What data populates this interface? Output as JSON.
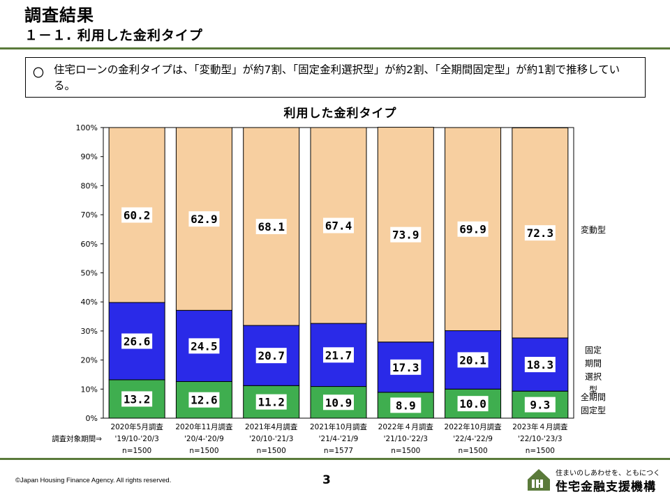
{
  "header": {
    "title": "調査結果",
    "subtitle": "１－１. 利用した金利タイプ"
  },
  "summary": {
    "bullet": "〇",
    "text": "住宅ローンの金利タイプは、「変動型」が約7割、「固定金利選択型」が約2割、「全期間固定型」が約1割で推移している。"
  },
  "period_caption": "調査対象期間⇒",
  "chart_data": {
    "type": "bar",
    "stacked": true,
    "title": "利用した金利タイプ",
    "categories": [
      "2020年5月調査",
      "2020年11月調査",
      "2021年4月調査",
      "2021年10月調査",
      "2022年４月調査",
      "2022年10月調査",
      "2023年４月調査"
    ],
    "periods": [
      "'19/10-'20/3",
      "'20/4-'20/9",
      "'20/10-'21/3",
      "'21/4-'21/9",
      "'21/10-'22/3",
      "'22/4-'22/9",
      "'22/10-'23/3"
    ],
    "sample_sizes": [
      "n=1500",
      "n=1500",
      "n=1500",
      "n=1577",
      "n=1500",
      "n=1500",
      "n=1500"
    ],
    "series": [
      {
        "name": "全期間固定型",
        "color": "#3fae4f",
        "values": [
          13.2,
          12.6,
          11.2,
          10.9,
          8.9,
          10.0,
          9.3
        ],
        "labels": [
          "13.2",
          "12.6",
          "11.2",
          "10.9",
          "8.9",
          "10.0",
          "9.3"
        ]
      },
      {
        "name": "固定期間選択型",
        "color": "#2a2ae8",
        "values": [
          26.6,
          24.5,
          20.7,
          21.7,
          17.3,
          20.1,
          18.3
        ],
        "labels": [
          "26.6",
          "24.5",
          "20.7",
          "21.7",
          "17.3",
          "20.1",
          "18.3"
        ]
      },
      {
        "name": "変動型",
        "color": "#f7cfa0",
        "values": [
          60.2,
          62.9,
          68.1,
          67.4,
          73.9,
          69.9,
          72.3
        ],
        "labels": [
          "60.2",
          "62.9",
          "68.1",
          "67.4",
          "73.9",
          "69.9",
          "72.3"
        ]
      }
    ],
    "ylim": [
      0,
      100
    ],
    "yticks": [
      "0%",
      "10%",
      "20%",
      "30%",
      "40%",
      "50%",
      "60%",
      "70%",
      "80%",
      "90%",
      "100%"
    ],
    "legend_labels": {
      "fixed_full": "全期間\n固定型",
      "fixed_select": "固定\n期間\n選択\n型",
      "variable": "変動型"
    },
    "legend_position": "right"
  },
  "footer": {
    "copyright": "©Japan Housing Finance Agency. All rights reserved.",
    "page_number": "3",
    "tagline": "住まいのしあわせを、ともにつくる。",
    "org_name": "住宅金融支援機構"
  }
}
